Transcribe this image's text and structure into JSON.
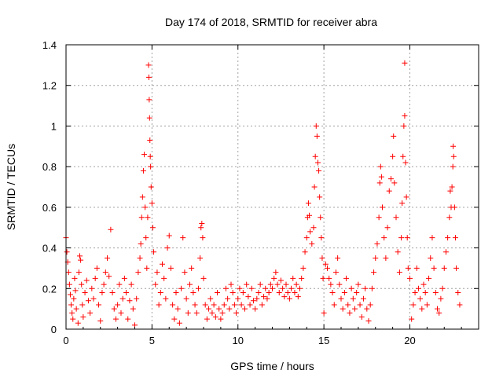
{
  "chart_data": {
    "type": "scatter",
    "title": "Day 174 of 2018, SRMTID for receiver abra",
    "xlabel": "GPS time / hours",
    "ylabel": "SRMTID / TECUs",
    "xlim": [
      0,
      24
    ],
    "ylim": [
      0,
      1.4
    ],
    "x_ticks": [
      0,
      5,
      10,
      15,
      20
    ],
    "x_tick_labels": [
      "0",
      "5",
      "10",
      "15",
      "20"
    ],
    "y_ticks": [
      0,
      0.2,
      0.4,
      0.6,
      0.8,
      1.0,
      1.2,
      1.4
    ],
    "y_tick_labels": [
      "0",
      "0.2",
      "0.4",
      "0.6",
      "0.8",
      "1",
      "1.2",
      "1.4"
    ],
    "grid": true,
    "marker": "+",
    "series": [
      {
        "name": "SRMTID",
        "color": "#ff0000",
        "points": [
          [
            0.0,
            0.45
          ],
          [
            0.05,
            0.38
          ],
          [
            0.1,
            0.33
          ],
          [
            0.15,
            0.28
          ],
          [
            0.2,
            0.22
          ],
          [
            0.25,
            0.17
          ],
          [
            0.3,
            0.12
          ],
          [
            0.35,
            0.08
          ],
          [
            0.4,
            0.05
          ],
          [
            0.45,
            0.15
          ],
          [
            0.5,
            0.25
          ],
          [
            0.55,
            0.19
          ],
          [
            0.6,
            0.1
          ],
          [
            0.7,
            0.03
          ],
          [
            0.75,
            0.28
          ],
          [
            0.8,
            0.36
          ],
          [
            0.85,
            0.34
          ],
          [
            0.9,
            0.22
          ],
          [
            0.95,
            0.12
          ],
          [
            1.0,
            0.06
          ],
          [
            1.1,
            0.18
          ],
          [
            1.2,
            0.24
          ],
          [
            1.3,
            0.14
          ],
          [
            1.4,
            0.08
          ],
          [
            1.5,
            0.2
          ],
          [
            1.6,
            0.15
          ],
          [
            1.7,
            0.25
          ],
          [
            1.8,
            0.3
          ],
          [
            1.9,
            0.12
          ],
          [
            2.0,
            0.04
          ],
          [
            2.1,
            0.18
          ],
          [
            2.2,
            0.22
          ],
          [
            2.3,
            0.28
          ],
          [
            2.4,
            0.35
          ],
          [
            2.5,
            0.26
          ],
          [
            2.6,
            0.49
          ],
          [
            2.7,
            0.18
          ],
          [
            2.8,
            0.1
          ],
          [
            2.9,
            0.05
          ],
          [
            3.0,
            0.12
          ],
          [
            3.1,
            0.22
          ],
          [
            3.2,
            0.08
          ],
          [
            3.3,
            0.15
          ],
          [
            3.4,
            0.25
          ],
          [
            3.5,
            0.18
          ],
          [
            3.6,
            0.05
          ],
          [
            3.7,
            0.14
          ],
          [
            3.8,
            0.22
          ],
          [
            3.9,
            0.1
          ],
          [
            4.0,
            0.02
          ],
          [
            4.1,
            0.15
          ],
          [
            4.2,
            0.28
          ],
          [
            4.3,
            0.35
          ],
          [
            4.35,
            0.42
          ],
          [
            4.4,
            0.55
          ],
          [
            4.45,
            0.65
          ],
          [
            4.5,
            0.78
          ],
          [
            4.55,
            0.86
          ],
          [
            4.6,
            0.6
          ],
          [
            4.65,
            0.45
          ],
          [
            4.7,
            0.3
          ],
          [
            4.75,
            0.55
          ],
          [
            4.8,
            1.3
          ],
          [
            4.82,
            1.24
          ],
          [
            4.84,
            1.13
          ],
          [
            4.86,
            1.04
          ],
          [
            4.88,
            0.93
          ],
          [
            4.9,
            0.85
          ],
          [
            4.92,
            0.8
          ],
          [
            4.95,
            0.7
          ],
          [
            5.0,
            0.62
          ],
          [
            5.05,
            0.5
          ],
          [
            5.1,
            0.38
          ],
          [
            5.2,
            0.22
          ],
          [
            5.3,
            0.28
          ],
          [
            5.4,
            0.12
          ],
          [
            5.5,
            0.18
          ],
          [
            5.6,
            0.32
          ],
          [
            5.7,
            0.25
          ],
          [
            5.8,
            0.15
          ],
          [
            5.9,
            0.4
          ],
          [
            6.0,
            0.46
          ],
          [
            6.1,
            0.3
          ],
          [
            6.2,
            0.12
          ],
          [
            6.3,
            0.05
          ],
          [
            6.4,
            0.18
          ],
          [
            6.5,
            0.1
          ],
          [
            6.6,
            0.03
          ],
          [
            6.7,
            0.2
          ],
          [
            6.8,
            0.45
          ],
          [
            6.9,
            0.28
          ],
          [
            7.0,
            0.15
          ],
          [
            7.1,
            0.08
          ],
          [
            7.2,
            0.22
          ],
          [
            7.3,
            0.3
          ],
          [
            7.4,
            0.18
          ],
          [
            7.5,
            0.12
          ],
          [
            7.6,
            0.08
          ],
          [
            7.7,
            0.2
          ],
          [
            7.8,
            0.35
          ],
          [
            7.85,
            0.5
          ],
          [
            7.9,
            0.52
          ],
          [
            7.95,
            0.45
          ],
          [
            8.0,
            0.25
          ],
          [
            8.1,
            0.12
          ],
          [
            8.2,
            0.05
          ],
          [
            8.3,
            0.1
          ],
          [
            8.4,
            0.15
          ],
          [
            8.5,
            0.08
          ],
          [
            8.6,
            0.12
          ],
          [
            8.7,
            0.06
          ],
          [
            8.8,
            0.18
          ],
          [
            8.9,
            0.1
          ],
          [
            9.0,
            0.05
          ],
          [
            9.1,
            0.08
          ],
          [
            9.2,
            0.12
          ],
          [
            9.3,
            0.2
          ],
          [
            9.4,
            0.15
          ],
          [
            9.5,
            0.1
          ],
          [
            9.6,
            0.22
          ],
          [
            9.7,
            0.18
          ],
          [
            9.8,
            0.12
          ],
          [
            9.9,
            0.08
          ],
          [
            10.0,
            0.15
          ],
          [
            10.1,
            0.2
          ],
          [
            10.2,
            0.12
          ],
          [
            10.3,
            0.18
          ],
          [
            10.4,
            0.1
          ],
          [
            10.5,
            0.22
          ],
          [
            10.6,
            0.16
          ],
          [
            10.7,
            0.12
          ],
          [
            10.8,
            0.2
          ],
          [
            10.9,
            0.14
          ],
          [
            11.0,
            0.1
          ],
          [
            11.1,
            0.15
          ],
          [
            11.2,
            0.18
          ],
          [
            11.3,
            0.22
          ],
          [
            11.4,
            0.12
          ],
          [
            11.5,
            0.16
          ],
          [
            11.6,
            0.2
          ],
          [
            11.7,
            0.15
          ],
          [
            11.8,
            0.18
          ],
          [
            11.9,
            0.22
          ],
          [
            12.0,
            0.2
          ],
          [
            12.1,
            0.25
          ],
          [
            12.2,
            0.28
          ],
          [
            12.3,
            0.22
          ],
          [
            12.4,
            0.18
          ],
          [
            12.5,
            0.24
          ],
          [
            12.6,
            0.2
          ],
          [
            12.7,
            0.16
          ],
          [
            12.8,
            0.22
          ],
          [
            12.9,
            0.18
          ],
          [
            13.0,
            0.15
          ],
          [
            13.1,
            0.2
          ],
          [
            13.2,
            0.25
          ],
          [
            13.3,
            0.18
          ],
          [
            13.4,
            0.22
          ],
          [
            13.5,
            0.16
          ],
          [
            13.6,
            0.2
          ],
          [
            13.7,
            0.25
          ],
          [
            13.8,
            0.3
          ],
          [
            13.9,
            0.38
          ],
          [
            14.0,
            0.45
          ],
          [
            14.05,
            0.55
          ],
          [
            14.1,
            0.62
          ],
          [
            14.15,
            0.56
          ],
          [
            14.2,
            0.48
          ],
          [
            14.3,
            0.42
          ],
          [
            14.4,
            0.5
          ],
          [
            14.45,
            0.7
          ],
          [
            14.5,
            0.85
          ],
          [
            14.55,
            1.0
          ],
          [
            14.6,
            0.95
          ],
          [
            14.65,
            0.82
          ],
          [
            14.7,
            0.78
          ],
          [
            14.75,
            0.65
          ],
          [
            14.8,
            0.55
          ],
          [
            14.85,
            0.45
          ],
          [
            14.9,
            0.35
          ],
          [
            14.95,
            0.25
          ],
          [
            15.0,
            0.08
          ],
          [
            15.1,
            0.32
          ],
          [
            15.2,
            0.3
          ],
          [
            15.3,
            0.25
          ],
          [
            15.4,
            0.22
          ],
          [
            15.5,
            0.18
          ],
          [
            15.6,
            0.12
          ],
          [
            15.7,
            0.28
          ],
          [
            15.8,
            0.35
          ],
          [
            15.9,
            0.22
          ],
          [
            16.0,
            0.15
          ],
          [
            16.1,
            0.1
          ],
          [
            16.2,
            0.18
          ],
          [
            16.3,
            0.25
          ],
          [
            16.4,
            0.12
          ],
          [
            16.5,
            0.08
          ],
          [
            16.6,
            0.2
          ],
          [
            16.7,
            0.15
          ],
          [
            16.8,
            0.1
          ],
          [
            16.9,
            0.18
          ],
          [
            17.0,
            0.22
          ],
          [
            17.1,
            0.12
          ],
          [
            17.2,
            0.06
          ],
          [
            17.3,
            0.15
          ],
          [
            17.4,
            0.2
          ],
          [
            17.5,
            0.1
          ],
          [
            17.6,
            0.04
          ],
          [
            17.7,
            0.12
          ],
          [
            17.8,
            0.2
          ],
          [
            17.9,
            0.28
          ],
          [
            18.0,
            0.35
          ],
          [
            18.1,
            0.42
          ],
          [
            18.2,
            0.55
          ],
          [
            18.25,
            0.72
          ],
          [
            18.3,
            0.8
          ],
          [
            18.35,
            0.75
          ],
          [
            18.4,
            0.6
          ],
          [
            18.5,
            0.45
          ],
          [
            18.6,
            0.35
          ],
          [
            18.7,
            0.5
          ],
          [
            18.8,
            0.68
          ],
          [
            18.9,
            0.74
          ],
          [
            19.0,
            0.85
          ],
          [
            19.05,
            0.95
          ],
          [
            19.1,
            0.72
          ],
          [
            19.2,
            0.55
          ],
          [
            19.3,
            0.38
          ],
          [
            19.4,
            0.28
          ],
          [
            19.5,
            0.45
          ],
          [
            19.55,
            0.62
          ],
          [
            19.6,
            0.85
          ],
          [
            19.65,
            1.0
          ],
          [
            19.7,
            1.05
          ],
          [
            19.75,
            0.82
          ],
          [
            19.8,
            0.65
          ],
          [
            19.85,
            0.45
          ],
          [
            19.9,
            0.3
          ],
          [
            20.0,
            0.25
          ],
          [
            20.1,
            0.05
          ],
          [
            20.2,
            0.12
          ],
          [
            20.3,
            0.18
          ],
          [
            20.4,
            0.3
          ],
          [
            20.5,
            0.2
          ],
          [
            20.6,
            0.15
          ],
          [
            20.7,
            0.1
          ],
          [
            20.8,
            0.22
          ],
          [
            20.9,
            0.18
          ],
          [
            21.0,
            0.12
          ],
          [
            21.1,
            0.25
          ],
          [
            21.2,
            0.35
          ],
          [
            21.3,
            0.45
          ],
          [
            21.4,
            0.3
          ],
          [
            21.5,
            0.18
          ],
          [
            21.6,
            0.1
          ],
          [
            21.7,
            0.08
          ],
          [
            21.8,
            0.15
          ],
          [
            21.9,
            0.2
          ],
          [
            22.0,
            0.3
          ],
          [
            22.1,
            0.38
          ],
          [
            22.2,
            0.45
          ],
          [
            22.3,
            0.55
          ],
          [
            22.35,
            0.68
          ],
          [
            22.4,
            0.6
          ],
          [
            22.45,
            0.7
          ],
          [
            22.5,
            0.8
          ],
          [
            22.52,
            0.9
          ],
          [
            22.55,
            0.85
          ],
          [
            22.6,
            0.6
          ],
          [
            22.65,
            0.45
          ],
          [
            22.7,
            0.3
          ],
          [
            22.8,
            0.18
          ],
          [
            22.9,
            0.12
          ],
          [
            19.7,
            1.31
          ]
        ]
      }
    ]
  }
}
